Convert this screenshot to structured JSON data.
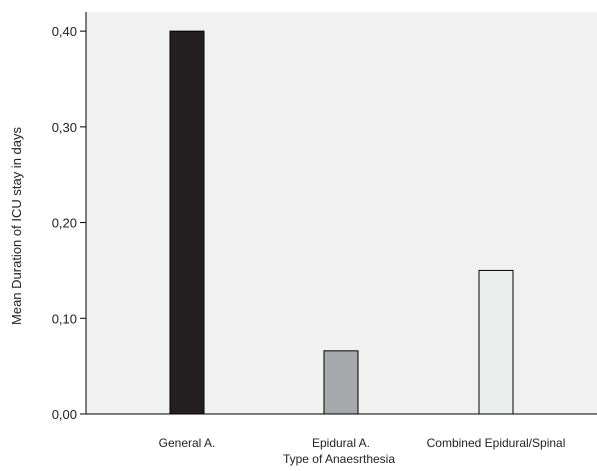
{
  "chart_data": {
    "type": "bar",
    "title": "",
    "xlabel": "Type of Anaesrthesia",
    "ylabel": "Mean Duration of ICU stay in days",
    "categories": [
      "General A.",
      "Epidural A.",
      "Combined Epidural/Spinal"
    ],
    "values": [
      0.4,
      0.066,
      0.15
    ],
    "ylim": [
      0,
      0.42
    ],
    "yticks": [
      0,
      0.1,
      0.2,
      0.3,
      0.4
    ],
    "ytick_labels": [
      "0,00",
      "0,10",
      "0,20",
      "0,30",
      "0,40"
    ],
    "grid": false,
    "legend": "none"
  },
  "colors": {
    "plot_background": "#f1f1f1",
    "axis_line": "#000000",
    "bar_fills": [
      "#231f20",
      "#a7a9ac",
      "#eceeed"
    ],
    "bar_outline": "#000000"
  }
}
